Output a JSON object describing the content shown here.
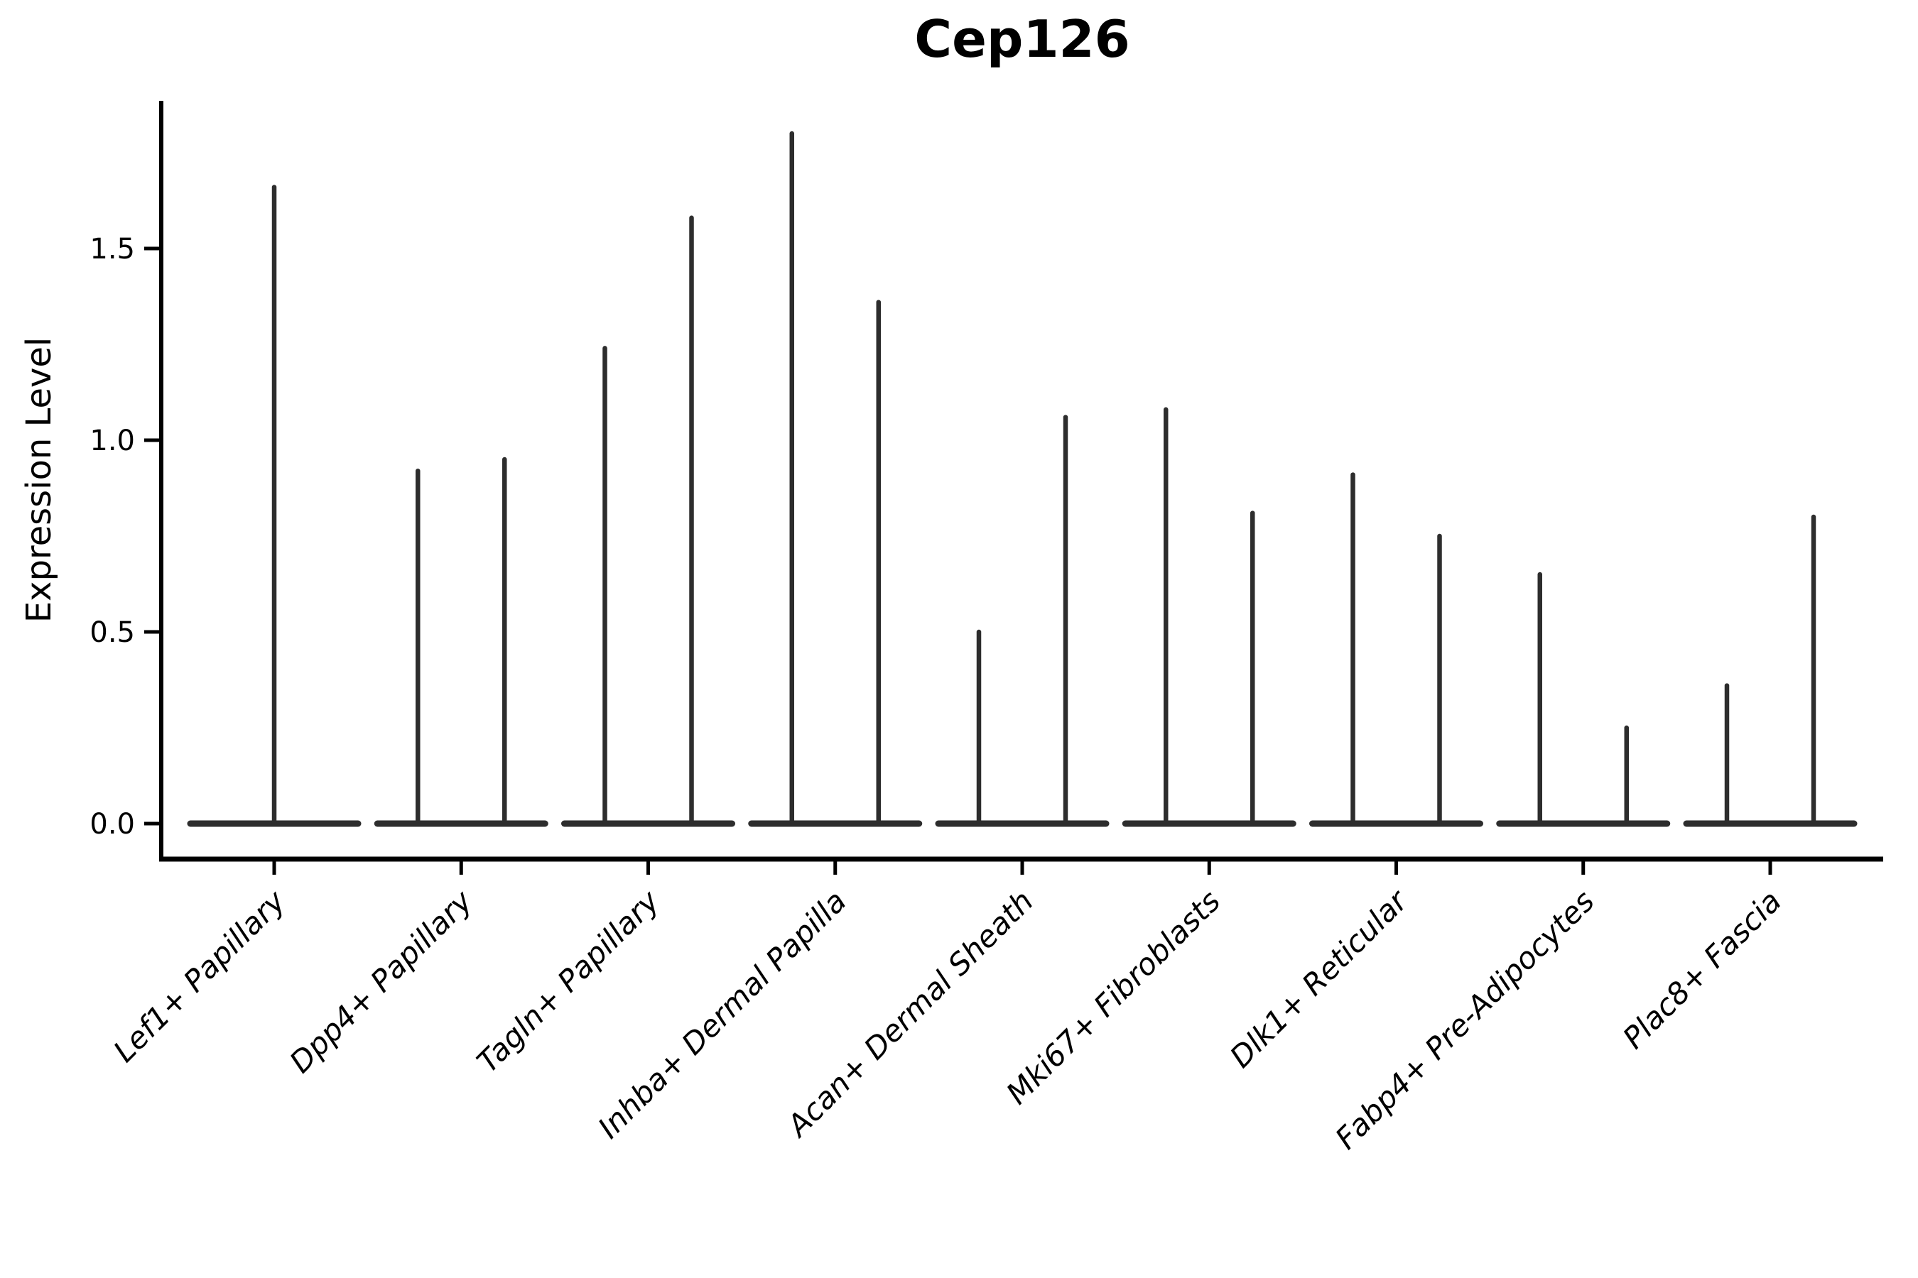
{
  "chart_data": {
    "type": "violin",
    "title": "Cep126",
    "ylabel": "Expression Level",
    "xlabel": "",
    "yticks": [
      "0.0",
      "0.5",
      "1.0",
      "1.5"
    ],
    "ytick_values": [
      0.0,
      0.5,
      1.0,
      1.5
    ],
    "ylim": [
      -0.09,
      1.89
    ],
    "grid": false,
    "legend": null,
    "note": "Thin spike-shaped violins: bulk of cells at expression 0 (flat base) with a narrow vertical spike up to the maximum expression. Each category holds a pair of violins except Lef1+ Papillary, which has a single full-width centered violin.",
    "categories": [
      "Lef1+ Papillary",
      "Dpp4+ Papillary",
      "Tagln+ Papillary",
      "Inhba+ Dermal Papilla",
      "Acan+ Dermal Sheath",
      "Mki67+ Fibroblasts",
      "Dlk1+ Reticular",
      "Fabp4+ Pre-Adipocytes",
      "Plac8+ Fascia"
    ],
    "groups": [
      {
        "category": "Lef1+ Papillary",
        "layout": "single-full-width",
        "violin_peaks": [
          1.66
        ]
      },
      {
        "category": "Dpp4+ Papillary",
        "layout": "split-pair",
        "violin_peaks": [
          0.92,
          0.95
        ]
      },
      {
        "category": "Tagln+ Papillary",
        "layout": "split-pair",
        "violin_peaks": [
          1.24,
          1.58
        ]
      },
      {
        "category": "Inhba+ Dermal Papilla",
        "layout": "split-pair",
        "violin_peaks": [
          1.8,
          1.36
        ]
      },
      {
        "category": "Acan+ Dermal Sheath",
        "layout": "split-pair",
        "violin_peaks": [
          0.5,
          1.06
        ]
      },
      {
        "category": "Mki67+ Fibroblasts",
        "layout": "split-pair",
        "violin_peaks": [
          1.08,
          0.81
        ]
      },
      {
        "category": "Dlk1+ Reticular",
        "layout": "split-pair",
        "violin_peaks": [
          0.91,
          0.75
        ]
      },
      {
        "category": "Fabp4+ Pre-Adipocytes",
        "layout": "split-pair",
        "violin_peaks": [
          0.65,
          0.25
        ]
      },
      {
        "category": "Plac8+ Fascia",
        "layout": "split-pair",
        "violin_peaks": [
          0.36,
          0.8
        ]
      }
    ]
  },
  "colors": {
    "violin": "#2d2d2d",
    "axis": "#000000",
    "text": "#000000",
    "background": "#ffffff"
  }
}
